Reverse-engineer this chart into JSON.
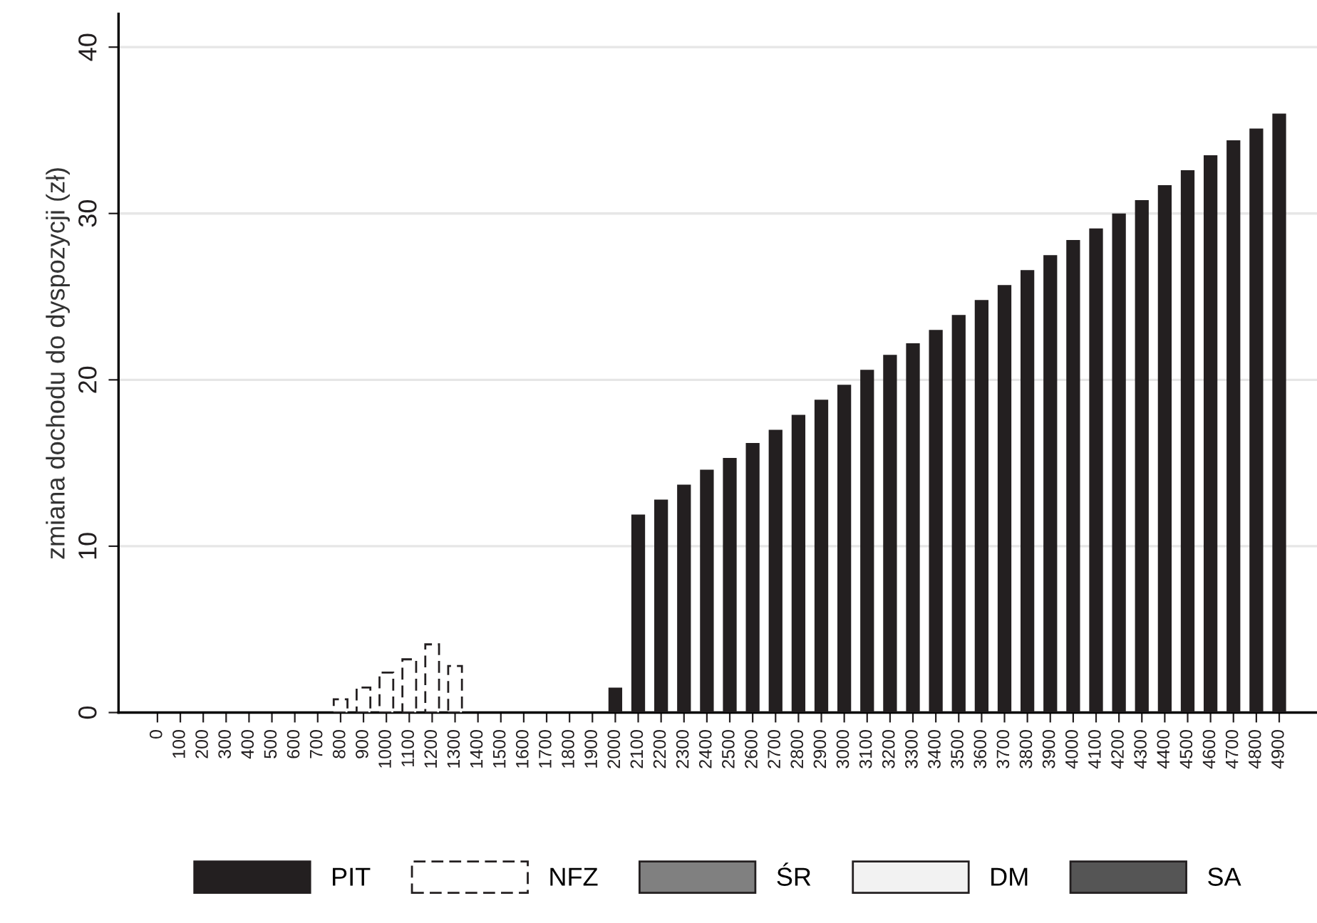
{
  "chart_data": {
    "type": "bar",
    "ylabel": "zmiana dochodu do dyspozycji (zł)",
    "categories": [
      "0",
      "100",
      "200",
      "300",
      "400",
      "500",
      "600",
      "700",
      "800",
      "900",
      "1000",
      "1100",
      "1200",
      "1300",
      "1400",
      "1500",
      "1600",
      "1700",
      "1800",
      "1900",
      "2000",
      "2100",
      "2200",
      "2300",
      "2400",
      "2500",
      "2600",
      "2700",
      "2800",
      "2900",
      "3000",
      "3100",
      "3200",
      "3300",
      "3400",
      "3500",
      "3600",
      "3700",
      "3800",
      "3900",
      "4000",
      "4100",
      "4200",
      "4300",
      "4400",
      "4500",
      "4600",
      "4700",
      "4800",
      "4900"
    ],
    "stacked": true,
    "series": [
      {
        "name": "PIT",
        "color": "#231f20",
        "values": [
          null,
          null,
          null,
          null,
          null,
          null,
          null,
          null,
          null,
          null,
          null,
          null,
          null,
          null,
          null,
          null,
          null,
          null,
          null,
          null,
          1.5,
          11.9,
          12.8,
          13.7,
          14.6,
          15.3,
          16.2,
          17.0,
          17.9,
          18.8,
          19.7,
          20.6,
          21.5,
          22.2,
          23.0,
          23.9,
          24.8,
          25.7,
          26.6,
          27.5,
          28.4,
          29.1,
          30.0,
          30.8,
          31.7,
          32.6,
          33.5,
          34.4,
          35.1,
          36.0
        ]
      },
      {
        "name": "NFZ",
        "color": "#ffffff",
        "line_style": "dashed",
        "values": [
          null,
          null,
          null,
          null,
          null,
          null,
          null,
          null,
          0.8,
          1.5,
          2.4,
          3.2,
          4.1,
          2.8,
          null,
          null,
          null,
          null,
          null,
          null,
          null,
          null,
          null,
          null,
          null,
          null,
          null,
          null,
          null,
          null,
          null,
          null,
          null,
          null,
          null,
          null,
          null,
          null,
          null,
          null,
          null,
          null,
          null,
          null,
          null,
          null,
          null,
          null,
          null,
          null
        ]
      },
      {
        "name": "ŚR",
        "color": "#808080",
        "values": [
          null,
          null,
          null,
          null,
          null,
          null,
          null,
          null,
          null,
          null,
          null,
          null,
          null,
          null,
          null,
          null,
          null,
          null,
          null,
          null,
          null,
          null,
          null,
          null,
          null,
          null,
          null,
          null,
          null,
          null,
          null,
          null,
          null,
          null,
          null,
          null,
          null,
          null,
          null,
          null,
          null,
          null,
          null,
          null,
          null,
          null,
          null,
          null,
          null,
          null
        ]
      },
      {
        "name": "DM",
        "color": "#f2f2f2",
        "values": [
          null,
          null,
          null,
          null,
          null,
          null,
          null,
          null,
          null,
          null,
          null,
          null,
          null,
          null,
          null,
          null,
          null,
          null,
          null,
          null,
          null,
          null,
          null,
          null,
          null,
          null,
          null,
          null,
          null,
          null,
          null,
          null,
          null,
          null,
          null,
          null,
          null,
          null,
          null,
          null,
          null,
          null,
          null,
          null,
          null,
          null,
          null,
          null,
          null,
          null
        ]
      },
      {
        "name": "SA",
        "color": "#555555",
        "values": [
          null,
          null,
          null,
          null,
          null,
          null,
          null,
          null,
          null,
          null,
          null,
          null,
          null,
          null,
          null,
          null,
          null,
          null,
          null,
          null,
          null,
          null,
          null,
          null,
          null,
          null,
          null,
          null,
          null,
          null,
          null,
          null,
          null,
          null,
          null,
          null,
          null,
          null,
          null,
          null,
          null,
          null,
          null,
          null,
          null,
          null,
          null,
          null,
          null,
          null
        ]
      }
    ],
    "ylim": [
      0,
      42
    ],
    "yticks": [
      0,
      10,
      20,
      30,
      40
    ],
    "grid": "y",
    "legend": "bottom"
  }
}
